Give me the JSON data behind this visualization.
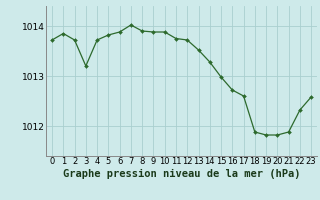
{
  "x": [
    0,
    1,
    2,
    3,
    4,
    5,
    6,
    7,
    8,
    9,
    10,
    11,
    12,
    13,
    14,
    15,
    16,
    17,
    18,
    19,
    20,
    21,
    22,
    23
  ],
  "y": [
    1013.72,
    1013.85,
    1013.72,
    1013.2,
    1013.72,
    1013.82,
    1013.88,
    1014.02,
    1013.9,
    1013.88,
    1013.88,
    1013.75,
    1013.72,
    1013.52,
    1013.28,
    1012.98,
    1012.72,
    1012.6,
    1011.88,
    1011.82,
    1011.82,
    1011.88,
    1012.32,
    1012.58
  ],
  "line_color": "#2d6a2d",
  "marker_color": "#2d6a2d",
  "bg_color": "#ceeaea",
  "grid_color": "#aacfcf",
  "title": "Graphe pression niveau de la mer (hPa)",
  "yticks": [
    1012,
    1013,
    1014
  ],
  "ylim": [
    1011.4,
    1014.4
  ],
  "xlim": [
    -0.5,
    23.5
  ],
  "title_fontsize": 7.5,
  "tick_fontsize": 6.5
}
